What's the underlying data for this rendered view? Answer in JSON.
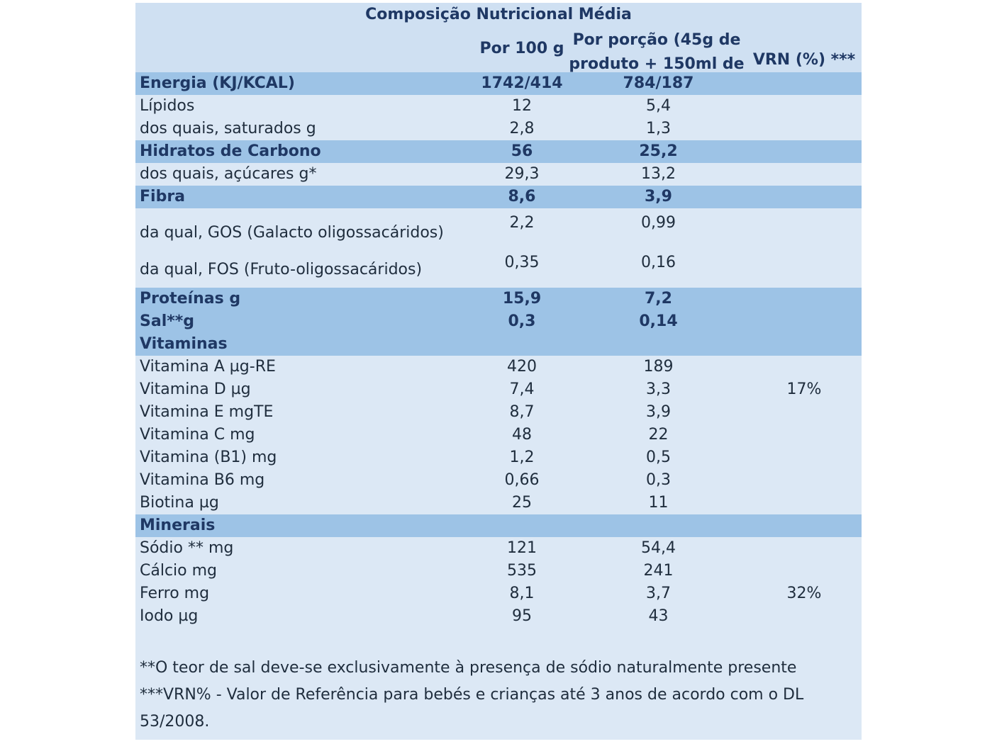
{
  "table": {
    "title": "Composição Nutricional Média",
    "headers": {
      "per100": "Por 100 g",
      "per_portion": "Por porção (45g de produto + 150ml de",
      "vrn": "VRN (%) ***"
    },
    "rows": [
      {
        "label": "Energia (KJ/KCAL)",
        "per100": "1742/414",
        "portion": "784/187",
        "vrn": ""
      },
      {
        "label": "Lípidos",
        "per100": "12",
        "portion": "5,4",
        "vrn": ""
      },
      {
        "label": "dos quais, saturados g",
        "per100": "2,8",
        "portion": "1,3",
        "vrn": ""
      },
      {
        "label": "Hidratos de Carbono",
        "per100": "56",
        "portion": "25,2",
        "vrn": ""
      },
      {
        "label": "dos quais, açúcares g*",
        "per100": "29,3",
        "portion": "13,2",
        "vrn": ""
      },
      {
        "label": "Fibra",
        "per100": "8,6",
        "portion": "3,9",
        "vrn": ""
      },
      {
        "label": "da qual, GOS (Galacto oligossacáridos)",
        "per100": "2,2",
        "portion": "0,99",
        "vrn": ""
      },
      {
        "label": "da qual, FOS (Fruto-oligossacáridos)",
        "per100": "0,35",
        "portion": "0,16",
        "vrn": ""
      },
      {
        "label": "Proteínas g",
        "per100": "15,9",
        "portion": "7,2",
        "vrn": ""
      },
      {
        "label": "Sal**g",
        "per100": "0,3",
        "portion": "0,14",
        "vrn": ""
      },
      {
        "label": "Vitaminas",
        "per100": "",
        "portion": "",
        "vrn": ""
      },
      {
        "label": "Vitamina A µg-RE",
        "per100": "420",
        "portion": "189",
        "vrn": ""
      },
      {
        "label": "Vitamina D µg",
        "per100": "7,4",
        "portion": "3,3",
        "vrn": "17%"
      },
      {
        "label": "Vitamina E mgTE",
        "per100": "8,7",
        "portion": "3,9",
        "vrn": ""
      },
      {
        "label": "Vitamina C mg",
        "per100": "48",
        "portion": "22",
        "vrn": ""
      },
      {
        "label": "Vitamina (B1) mg",
        "per100": "1,2",
        "portion": "0,5",
        "vrn": ""
      },
      {
        "label": "Vitamina B6 mg",
        "per100": "0,66",
        "portion": "0,3",
        "vrn": ""
      },
      {
        "label": "Biotina µg",
        "per100": "25",
        "portion": "11",
        "vrn": ""
      },
      {
        "label": "Minerais",
        "per100": "",
        "portion": "",
        "vrn": ""
      },
      {
        "label": "Sódio ** mg",
        "per100": "121",
        "portion": "54,4",
        "vrn": ""
      },
      {
        "label": "Cálcio mg",
        "per100": "535",
        "portion": "241",
        "vrn": ""
      },
      {
        "label": "Ferro mg",
        "per100": "8,1",
        "portion": "3,7",
        "vrn": "32%"
      },
      {
        "label": "Iodo µg",
        "per100": "95",
        "portion": "43",
        "vrn": ""
      }
    ]
  },
  "notes": {
    "salt": "**O teor de sal deve-se exclusivamente à presença de sódio naturalmente presente",
    "vrn": "***VRN% - Valor de Referência para bebés e crianças até 3 anos de acordo com o DL 53/2008."
  }
}
